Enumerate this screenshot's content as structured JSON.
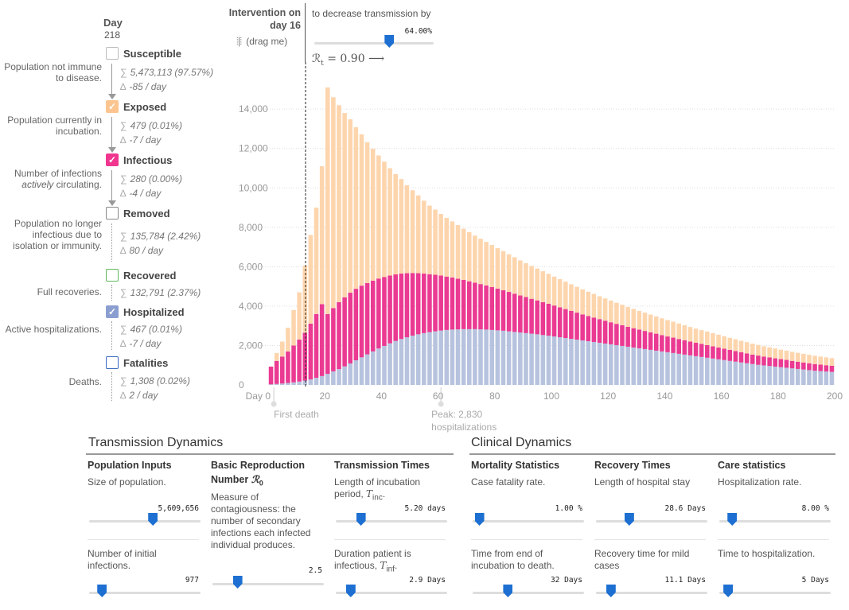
{
  "day": {
    "label": "Day",
    "value": "218"
  },
  "legend": [
    {
      "key": "susceptible",
      "label": "Susceptible",
      "color": "#bbbbbb",
      "checked": false,
      "desc": "Population not immune to disease.",
      "total": "5,473,113 (97.57%)",
      "delta": "-85 / day"
    },
    {
      "key": "exposed",
      "label": "Exposed",
      "color": "#fcc590",
      "checked": true,
      "desc": "Population currently in incubation.",
      "total": "479 (0.01%)",
      "delta": "-7 / day"
    },
    {
      "key": "infectious",
      "label": "Infectious",
      "color": "#f0368f",
      "checked": true,
      "desc_pre": "Number of infections ",
      "desc_em": "actively",
      "desc_post": " circulating.",
      "total": "280 (0.00%)",
      "delta": "-4 / day"
    },
    {
      "key": "removed",
      "label": "Removed",
      "color": "#888888",
      "checked": false,
      "desc": "Population no longer infectious due to isolation or immunity.",
      "total": "135,784 (2.42%)",
      "delta": "80 / day"
    },
    {
      "key": "recovered",
      "label": "Recovered",
      "color": "#5fb95a",
      "checked": false,
      "desc": "Full recoveries.",
      "total": "132,791 (2.37%)"
    },
    {
      "key": "hospitalized",
      "label": "Hospitalized",
      "color": "#8a9ed0",
      "checked": true,
      "desc": "Active hospitalizations.",
      "total": "467 (0.01%)",
      "delta": "-7 / day"
    },
    {
      "key": "fatalities",
      "label": "Fatalities",
      "color": "#3a6bc0",
      "checked": false,
      "desc": "Deaths.",
      "total": "1,308 (0.02%)",
      "delta": "2 / day"
    }
  ],
  "symbols": {
    "sum": "∑",
    "delta": "∆"
  },
  "intervention": {
    "title": "Intervention on day 16",
    "drag": "(drag me)",
    "text": "to decrease transmission by",
    "value": "64.00%",
    "fraction": 0.64,
    "rt_label": "= 0.90 ⟶"
  },
  "chart_data": {
    "type": "bar",
    "stacked": true,
    "x_start": 1,
    "x_end": 200,
    "step": 2,
    "xlim": [
      0,
      200
    ],
    "ylim": [
      0,
      15500
    ],
    "xticks": [
      0,
      20,
      40,
      60,
      80,
      100,
      120,
      140,
      160,
      180,
      200
    ],
    "xtick_labels": [
      "Day 0",
      "20",
      "40",
      "60",
      "80",
      "100",
      "120",
      "140",
      "160",
      "180",
      "200"
    ],
    "yticks": [
      0,
      2000,
      4000,
      6000,
      8000,
      10000,
      12000,
      14000
    ],
    "ytick_labels": [
      "0",
      "2,000",
      "4,000",
      "6,000",
      "8,000",
      "10,000",
      "12,000",
      "14,000"
    ],
    "grid": "horizontal dotted",
    "intervention_day": 16,
    "series_colors": {
      "hospitalized": "#b7c3de",
      "infectious": "#ea3a92",
      "exposed": "#fdd5ad"
    },
    "annotations": [
      {
        "label": "First death",
        "x": 2
      },
      {
        "label_lines": [
          "Peak: 2,830",
          "hospitalizations"
        ],
        "x": 61
      }
    ],
    "series": [
      {
        "name": "Hospitalized",
        "values": [
          30,
          50,
          70,
          100,
          130,
          170,
          220,
          280,
          360,
          450,
          560,
          690,
          800,
          940,
          1090,
          1250,
          1400,
          1550,
          1700,
          1850,
          1980,
          2110,
          2230,
          2330,
          2420,
          2500,
          2570,
          2630,
          2680,
          2720,
          2760,
          2790,
          2810,
          2820,
          2830,
          2830,
          2830,
          2820,
          2810,
          2790,
          2770,
          2750,
          2720,
          2690,
          2660,
          2630,
          2600,
          2570,
          2530,
          2500,
          2460,
          2420,
          2380,
          2340,
          2300,
          2260,
          2220,
          2180,
          2140,
          2100,
          2060,
          2020,
          1980,
          1940,
          1900,
          1860,
          1820,
          1780,
          1740,
          1700,
          1660,
          1620,
          1580,
          1540,
          1500,
          1460,
          1420,
          1380,
          1340,
          1300,
          1260,
          1220,
          1180,
          1140,
          1100,
          1060,
          1020,
          990,
          960,
          930,
          900,
          870,
          840,
          810,
          780,
          750,
          720,
          700,
          680,
          660
        ]
      },
      {
        "name": "Infectious",
        "values": [
          900,
          1170,
          1370,
          1600,
          1870,
          2130,
          2430,
          2830,
          3240,
          3650,
          3040,
          3210,
          3400,
          3510,
          3590,
          3630,
          3640,
          3620,
          3590,
          3550,
          3500,
          3440,
          3380,
          3320,
          3250,
          3180,
          3100,
          3020,
          2940,
          2870,
          2790,
          2710,
          2640,
          2570,
          2500,
          2430,
          2360,
          2300,
          2240,
          2180,
          2120,
          2060,
          2000,
          1940,
          1880,
          1830,
          1770,
          1720,
          1670,
          1620,
          1570,
          1520,
          1470,
          1420,
          1370,
          1320,
          1280,
          1240,
          1200,
          1160,
          1120,
          1080,
          1050,
          1010,
          980,
          950,
          920,
          890,
          860,
          830,
          800,
          780,
          750,
          730,
          700,
          680,
          660,
          640,
          620,
          600,
          580,
          560,
          540,
          520,
          500,
          480,
          470,
          450,
          440,
          420,
          410,
          400,
          380,
          370,
          360,
          350,
          340,
          330,
          320,
          310
        ]
      },
      {
        "name": "Exposed",
        "values": [
          0,
          400,
          760,
          1200,
          1800,
          2400,
          3400,
          4500,
          5400,
          7000,
          11500,
          10700,
          10000,
          9350,
          8800,
          8200,
          7680,
          7150,
          6700,
          6250,
          5850,
          5450,
          5090,
          4800,
          4470,
          4200,
          3950,
          3700,
          3480,
          3310,
          3130,
          2980,
          2850,
          2720,
          2600,
          2490,
          2390,
          2300,
          2210,
          2130,
          2050,
          1980,
          1910,
          1850,
          1780,
          1720,
          1670,
          1620,
          1570,
          1520,
          1470,
          1430,
          1390,
          1350,
          1310,
          1270,
          1230,
          1200,
          1160,
          1130,
          1100,
          1070,
          1040,
          1010,
          980,
          950,
          930,
          900,
          880,
          850,
          830,
          810,
          790,
          760,
          740,
          720,
          700,
          690,
          670,
          650,
          630,
          610,
          600,
          580,
          570,
          550,
          540,
          520,
          510,
          500,
          480,
          470,
          460,
          450,
          440,
          430,
          420,
          410,
          400,
          390
        ]
      }
    ]
  },
  "transmission": {
    "title": "Transmission Dynamics",
    "population": {
      "head": "Population Inputs",
      "text": "Size of population.",
      "value": "5,609,656",
      "fraction": 0.58
    },
    "initial": {
      "text": "Number of initial infections.",
      "value": "977",
      "fraction": 0.08
    },
    "r0": {
      "head_pre": "Basic Reproduction Number ",
      "head_math": "ℛ",
      "head_sub": "0",
      "text": "Measure of contagiousness: the number of secondary infections each infected individual produces.",
      "value": "2.5",
      "fraction": 0.2
    },
    "times": {
      "head": "Transmission Times",
      "inc_text": "Length of incubation period, ",
      "inc_math": "T",
      "inc_sub": "inc",
      "inc_value": "5.20 days",
      "inc_fraction": 0.2,
      "inf_text": "Duration patient is infectious, ",
      "inf_math": "T",
      "inf_sub": "inf",
      "inf_value": "2.9 Days",
      "inf_fraction": 0.1
    }
  },
  "clinical": {
    "title": "Clinical Dynamics",
    "mortality": {
      "head": "Mortality Statistics",
      "text": "Case fatality rate.",
      "value": "1.00 %",
      "fraction": 0.02,
      "text2": "Time from end of incubation to death.",
      "value2": "32 Days",
      "fraction2": 0.3
    },
    "recovery": {
      "head": "Recovery Times",
      "text": "Length of hospital stay",
      "value": "28.6 Days",
      "fraction": 0.28,
      "text2": "Recovery time for mild cases",
      "value2": "11.1 Days",
      "fraction2": 0.1
    },
    "care": {
      "head": "Care statistics",
      "text": "Hospitalization rate.",
      "value": "8.00 %",
      "fraction": 0.08,
      "text2": "Time to hospitalization.",
      "value2": "5 Days",
      "fraction2": 0.04
    }
  }
}
